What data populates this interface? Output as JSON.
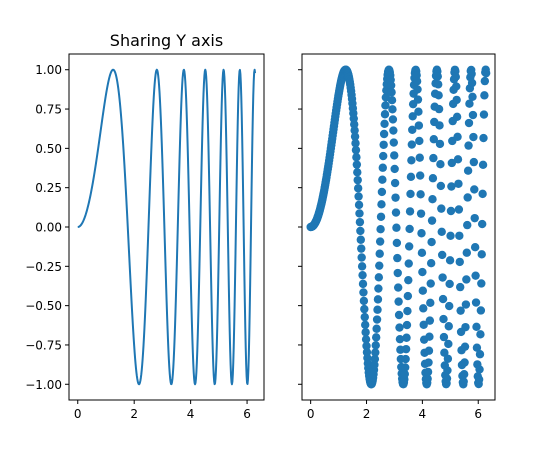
{
  "chart_data": [
    {
      "type": "line",
      "title": "Sharing Y axis",
      "xlabel": "",
      "ylabel": "",
      "function": "y = sin(x^2)",
      "x_range": [
        0,
        6.2832
      ],
      "sample_count": 400,
      "xlim": [
        -0.31,
        6.6
      ],
      "ylim": [
        -1.1,
        1.1
      ],
      "xticks": [
        0,
        2,
        4,
        6
      ],
      "xtick_labels": [
        "0",
        "2",
        "4",
        "6"
      ],
      "yticks": [
        1.0,
        0.75,
        0.5,
        0.25,
        0.0,
        -0.25,
        -0.5,
        -0.75,
        -1.0
      ],
      "ytick_labels": [
        "1.00",
        "0.75",
        "0.50",
        "0.25",
        "0.00",
        "−0.25",
        "−0.50",
        "−0.75",
        "−1.00"
      ],
      "color": "#1f77b4",
      "grid": false
    },
    {
      "type": "scatter",
      "title": "",
      "xlabel": "",
      "ylabel": "",
      "function": "y = sin(x^2)",
      "x_range": [
        0,
        6.2832
      ],
      "sample_count": 400,
      "shared_y": true,
      "xlim": [
        -0.31,
        6.6
      ],
      "ylim": [
        -1.1,
        1.1
      ],
      "xticks": [
        0,
        2,
        4,
        6
      ],
      "xtick_labels": [
        "0",
        "2",
        "4",
        "6"
      ],
      "color": "#1f77b4",
      "grid": false
    }
  ]
}
